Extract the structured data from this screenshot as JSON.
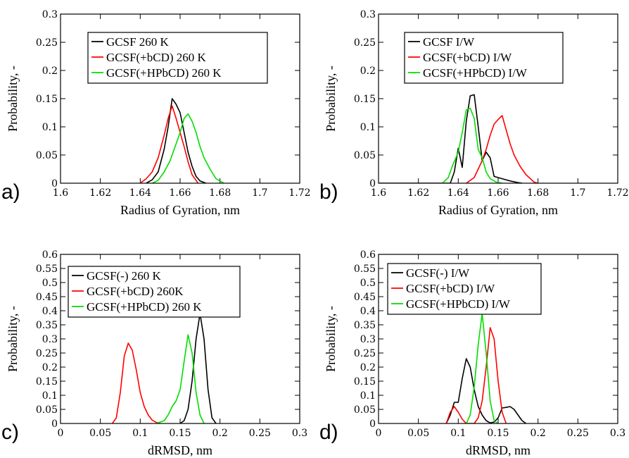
{
  "colors": {
    "black": "#000000",
    "red": "#ff0000",
    "green": "#00dd00"
  },
  "chart_data": [
    {
      "type": "line",
      "panel_label": "a)",
      "xlabel": "Radius of Gyration, nm",
      "ylabel": "Probability, -",
      "xlim": [
        1.6,
        1.72
      ],
      "ylim": [
        0,
        0.3
      ],
      "xticks": [
        1.6,
        1.62,
        1.64,
        1.66,
        1.68,
        1.7,
        1.72
      ],
      "xtick_labels": [
        "1.6",
        "1.62",
        "1.64",
        "1.66",
        "1.68",
        "1.7",
        "1.72"
      ],
      "yticks": [
        0,
        0.05,
        0.1,
        0.15,
        0.2,
        0.25,
        0.3
      ],
      "ytick_labels": [
        "0",
        "0.05",
        "0.1",
        "0.15",
        "0.2",
        "0.25",
        "0.3"
      ],
      "legend_position": "top-left",
      "series": [
        {
          "name": "GCSF 260 K",
          "color": "#000000",
          "x": [
            1.643,
            1.646,
            1.649,
            1.652,
            1.654,
            1.656,
            1.658,
            1.66,
            1.662,
            1.664,
            1.666,
            1.668,
            1.67,
            1.673
          ],
          "y": [
            0,
            0.006,
            0.02,
            0.06,
            0.1,
            0.15,
            0.14,
            0.125,
            0.09,
            0.055,
            0.03,
            0.012,
            0.004,
            0
          ]
        },
        {
          "name": "GCSF(+bCD) 260 K",
          "color": "#ff0000",
          "x": [
            1.64,
            1.643,
            1.646,
            1.649,
            1.652,
            1.654,
            1.656,
            1.658,
            1.66,
            1.662,
            1.664,
            1.666,
            1.669
          ],
          "y": [
            0,
            0.008,
            0.02,
            0.045,
            0.085,
            0.115,
            0.137,
            0.115,
            0.09,
            0.065,
            0.038,
            0.015,
            0
          ]
        },
        {
          "name": "GCSF(+HPbCD) 260 K",
          "color": "#00dd00",
          "x": [
            1.646,
            1.649,
            1.652,
            1.655,
            1.658,
            1.66,
            1.662,
            1.664,
            1.666,
            1.668,
            1.67,
            1.672,
            1.675,
            1.678,
            1.682
          ],
          "y": [
            0,
            0.005,
            0.02,
            0.04,
            0.07,
            0.09,
            0.115,
            0.123,
            0.11,
            0.09,
            0.065,
            0.045,
            0.025,
            0.008,
            0
          ]
        }
      ]
    },
    {
      "type": "line",
      "panel_label": "b)",
      "xlabel": "Radius of Gyration, nm",
      "ylabel": "Probability, -",
      "xlim": [
        1.6,
        1.72
      ],
      "ylim": [
        0,
        0.3
      ],
      "xticks": [
        1.6,
        1.62,
        1.64,
        1.66,
        1.68,
        1.7,
        1.72
      ],
      "xtick_labels": [
        "1.6",
        "1.62",
        "1.64",
        "1.66",
        "1.68",
        "1.7",
        "1.72"
      ],
      "yticks": [
        0,
        0.05,
        0.1,
        0.15,
        0.2,
        0.25,
        0.3
      ],
      "ytick_labels": [
        "0",
        "0.05",
        "0.1",
        "0.15",
        "0.2",
        "0.25",
        "0.3"
      ],
      "legend_position": "top-left",
      "series": [
        {
          "name": "GCSF I/W",
          "color": "#000000",
          "x": [
            1.6,
            1.636,
            1.638,
            1.64,
            1.642,
            1.644,
            1.646,
            1.648,
            1.65,
            1.652,
            1.654,
            1.656,
            1.658,
            1.662,
            1.666,
            1.67,
            1.672
          ],
          "y": [
            0,
            0,
            0.02,
            0.062,
            0.028,
            0.11,
            0.155,
            0.157,
            0.1,
            0.04,
            0.055,
            0.045,
            0.012,
            0.008,
            0.004,
            0.001,
            0
          ]
        },
        {
          "name": "GCSF(+bCD) I/W",
          "color": "#ff0000",
          "x": [
            1.644,
            1.648,
            1.652,
            1.654,
            1.656,
            1.658,
            1.66,
            1.662,
            1.664,
            1.666,
            1.668,
            1.671,
            1.674,
            1.678,
            1.68
          ],
          "y": [
            0,
            0.01,
            0.04,
            0.06,
            0.085,
            0.105,
            0.113,
            0.12,
            0.095,
            0.07,
            0.05,
            0.03,
            0.015,
            0.002,
            0
          ]
        },
        {
          "name": "GCSF(+HPbCD) I/W",
          "color": "#00dd00",
          "x": [
            1.632,
            1.635,
            1.637,
            1.64,
            1.642,
            1.644,
            1.646,
            1.648,
            1.65,
            1.652,
            1.654,
            1.656,
            1.659,
            1.662
          ],
          "y": [
            0,
            0.01,
            0.03,
            0.055,
            0.09,
            0.13,
            0.133,
            0.115,
            0.06,
            0.045,
            0.02,
            0.008,
            0.002,
            0
          ]
        }
      ]
    },
    {
      "type": "line",
      "panel_label": "c)",
      "xlabel": "dRMSD, nm",
      "ylabel": "Probability, -",
      "xlim": [
        0,
        0.3
      ],
      "ylim": [
        0,
        0.6
      ],
      "xticks": [
        0,
        0.05,
        0.1,
        0.15,
        0.2,
        0.25,
        0.3
      ],
      "xtick_labels": [
        "0",
        "0.05",
        "0.1",
        "0.15",
        "0.2",
        "0.25",
        "0.3"
      ],
      "yticks": [
        0,
        0.05,
        0.1,
        0.15,
        0.2,
        0.25,
        0.3,
        0.35,
        0.4,
        0.45,
        0.5,
        0.55,
        0.6
      ],
      "ytick_labels": [
        "0",
        "0.05",
        "0.1",
        "0.15",
        "0.2",
        "0.25",
        "0.3",
        "0.35",
        "0.4",
        "0.45",
        "0.5",
        "0.55",
        "0.6"
      ],
      "legend_position": "top-left",
      "series": [
        {
          "name": "GCSF(-) 260 K",
          "color": "#000000",
          "x": [
            0.15,
            0.155,
            0.16,
            0.165,
            0.17,
            0.175,
            0.18,
            0.185,
            0.19,
            0.195
          ],
          "y": [
            0,
            0.01,
            0.05,
            0.15,
            0.3,
            0.39,
            0.3,
            0.12,
            0.02,
            0
          ]
        },
        {
          "name": "GCSF(+bCD) 260K",
          "color": "#ff0000",
          "x": [
            0.065,
            0.07,
            0.075,
            0.08,
            0.085,
            0.09,
            0.095,
            0.1,
            0.105,
            0.11,
            0.115,
            0.12,
            0.125
          ],
          "y": [
            0,
            0.02,
            0.11,
            0.24,
            0.285,
            0.26,
            0.19,
            0.11,
            0.06,
            0.03,
            0.012,
            0.004,
            0
          ]
        },
        {
          "name": "GCSF(+HPbCD) 260 K",
          "color": "#00dd00",
          "x": [
            0.12,
            0.13,
            0.135,
            0.14,
            0.145,
            0.15,
            0.155,
            0.16,
            0.165,
            0.17,
            0.175,
            0.18
          ],
          "y": [
            0,
            0.01,
            0.03,
            0.06,
            0.08,
            0.12,
            0.22,
            0.315,
            0.25,
            0.11,
            0.03,
            0
          ]
        }
      ]
    },
    {
      "type": "line",
      "panel_label": "d)",
      "xlabel": "dRMSD, nm",
      "ylabel": "Probability, -",
      "xlim": [
        0,
        0.3
      ],
      "ylim": [
        0,
        0.6
      ],
      "xticks": [
        0,
        0.05,
        0.1,
        0.15,
        0.2,
        0.25,
        0.3
      ],
      "xtick_labels": [
        "0",
        "0.05",
        "0.1",
        "0.15",
        "0.2",
        "0.25",
        "0.3"
      ],
      "yticks": [
        0,
        0.05,
        0.1,
        0.15,
        0.2,
        0.25,
        0.3,
        0.35,
        0.4,
        0.45,
        0.5,
        0.55,
        0.6
      ],
      "ytick_labels": [
        "0",
        "0.05",
        "0.1",
        "0.15",
        "0.2",
        "0.25",
        "0.3",
        "0.35",
        "0.4",
        "0.45",
        "0.5",
        "0.55",
        "0.6"
      ],
      "legend_position": "top-left",
      "series": [
        {
          "name": "GCSF(-) I/W",
          "color": "#000000",
          "x": [
            0.085,
            0.09,
            0.095,
            0.1,
            0.105,
            0.11,
            0.115,
            0.12,
            0.125,
            0.13,
            0.135,
            0.14,
            0.145,
            0.15,
            0.155,
            0.16,
            0.165,
            0.17,
            0.175,
            0.18,
            0.185
          ],
          "y": [
            0,
            0.03,
            0.075,
            0.075,
            0.16,
            0.23,
            0.2,
            0.12,
            0.06,
            0.03,
            0.01,
            0.002,
            0.005,
            0.02,
            0.055,
            0.057,
            0.06,
            0.05,
            0.03,
            0.01,
            0
          ]
        },
        {
          "name": "GCSF(+bCD) I/W",
          "color": "#ff0000",
          "x": [
            0.085,
            0.09,
            0.095,
            0.1,
            0.105,
            0.11,
            0.12,
            0.125,
            0.13,
            0.135,
            0.14,
            0.145,
            0.15,
            0.155,
            0.16
          ],
          "y": [
            0,
            0.04,
            0.06,
            0.04,
            0.015,
            0,
            0,
            0.02,
            0.08,
            0.2,
            0.34,
            0.3,
            0.15,
            0.04,
            0
          ]
        },
        {
          "name": "GCSF(+HPbCD) I/W",
          "color": "#00dd00",
          "x": [
            0.11,
            0.115,
            0.12,
            0.125,
            0.13,
            0.135,
            0.14,
            0.145,
            0.15
          ],
          "y": [
            0,
            0.03,
            0.13,
            0.28,
            0.39,
            0.25,
            0.08,
            0.01,
            0
          ]
        }
      ]
    }
  ]
}
